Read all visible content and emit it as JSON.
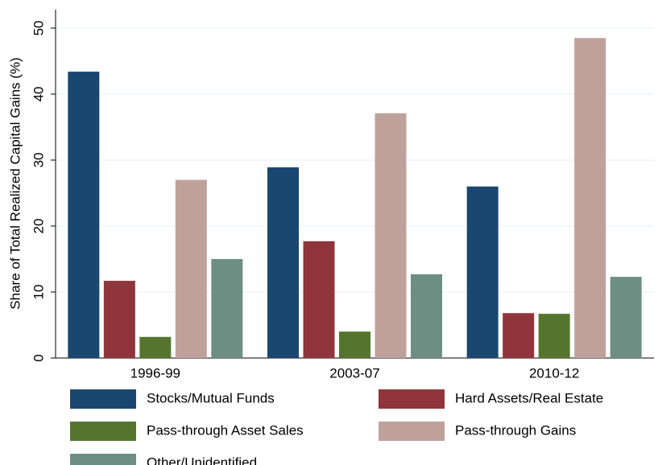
{
  "chart_data": {
    "type": "bar",
    "y_label": "Share of Total Realized Capital Gains (%)",
    "categories": [
      "1996-99",
      "2003-07",
      "2010-12"
    ],
    "series": [
      {
        "name": "Stocks/Mutual Funds",
        "color": "#1a476f",
        "values": [
          43.4,
          28.9,
          26.0
        ]
      },
      {
        "name": "Hard Assets/Real Estate",
        "color": "#90353b",
        "values": [
          11.7,
          17.7,
          6.8
        ]
      },
      {
        "name": "Pass-through Asset Sales",
        "color": "#55752f",
        "values": [
          3.2,
          4.0,
          6.7
        ]
      },
      {
        "name": "Pass-through Gains",
        "color": "#bfa19c",
        "values": [
          27.0,
          37.1,
          48.5
        ]
      },
      {
        "name": "Other/Unidentified",
        "color": "#6e8e84",
        "values": [
          15.0,
          12.7,
          12.3
        ]
      }
    ],
    "ylim": [
      0,
      52.8
    ],
    "yticks": [
      0,
      10,
      20,
      30,
      40,
      50
    ],
    "grid": true
  }
}
